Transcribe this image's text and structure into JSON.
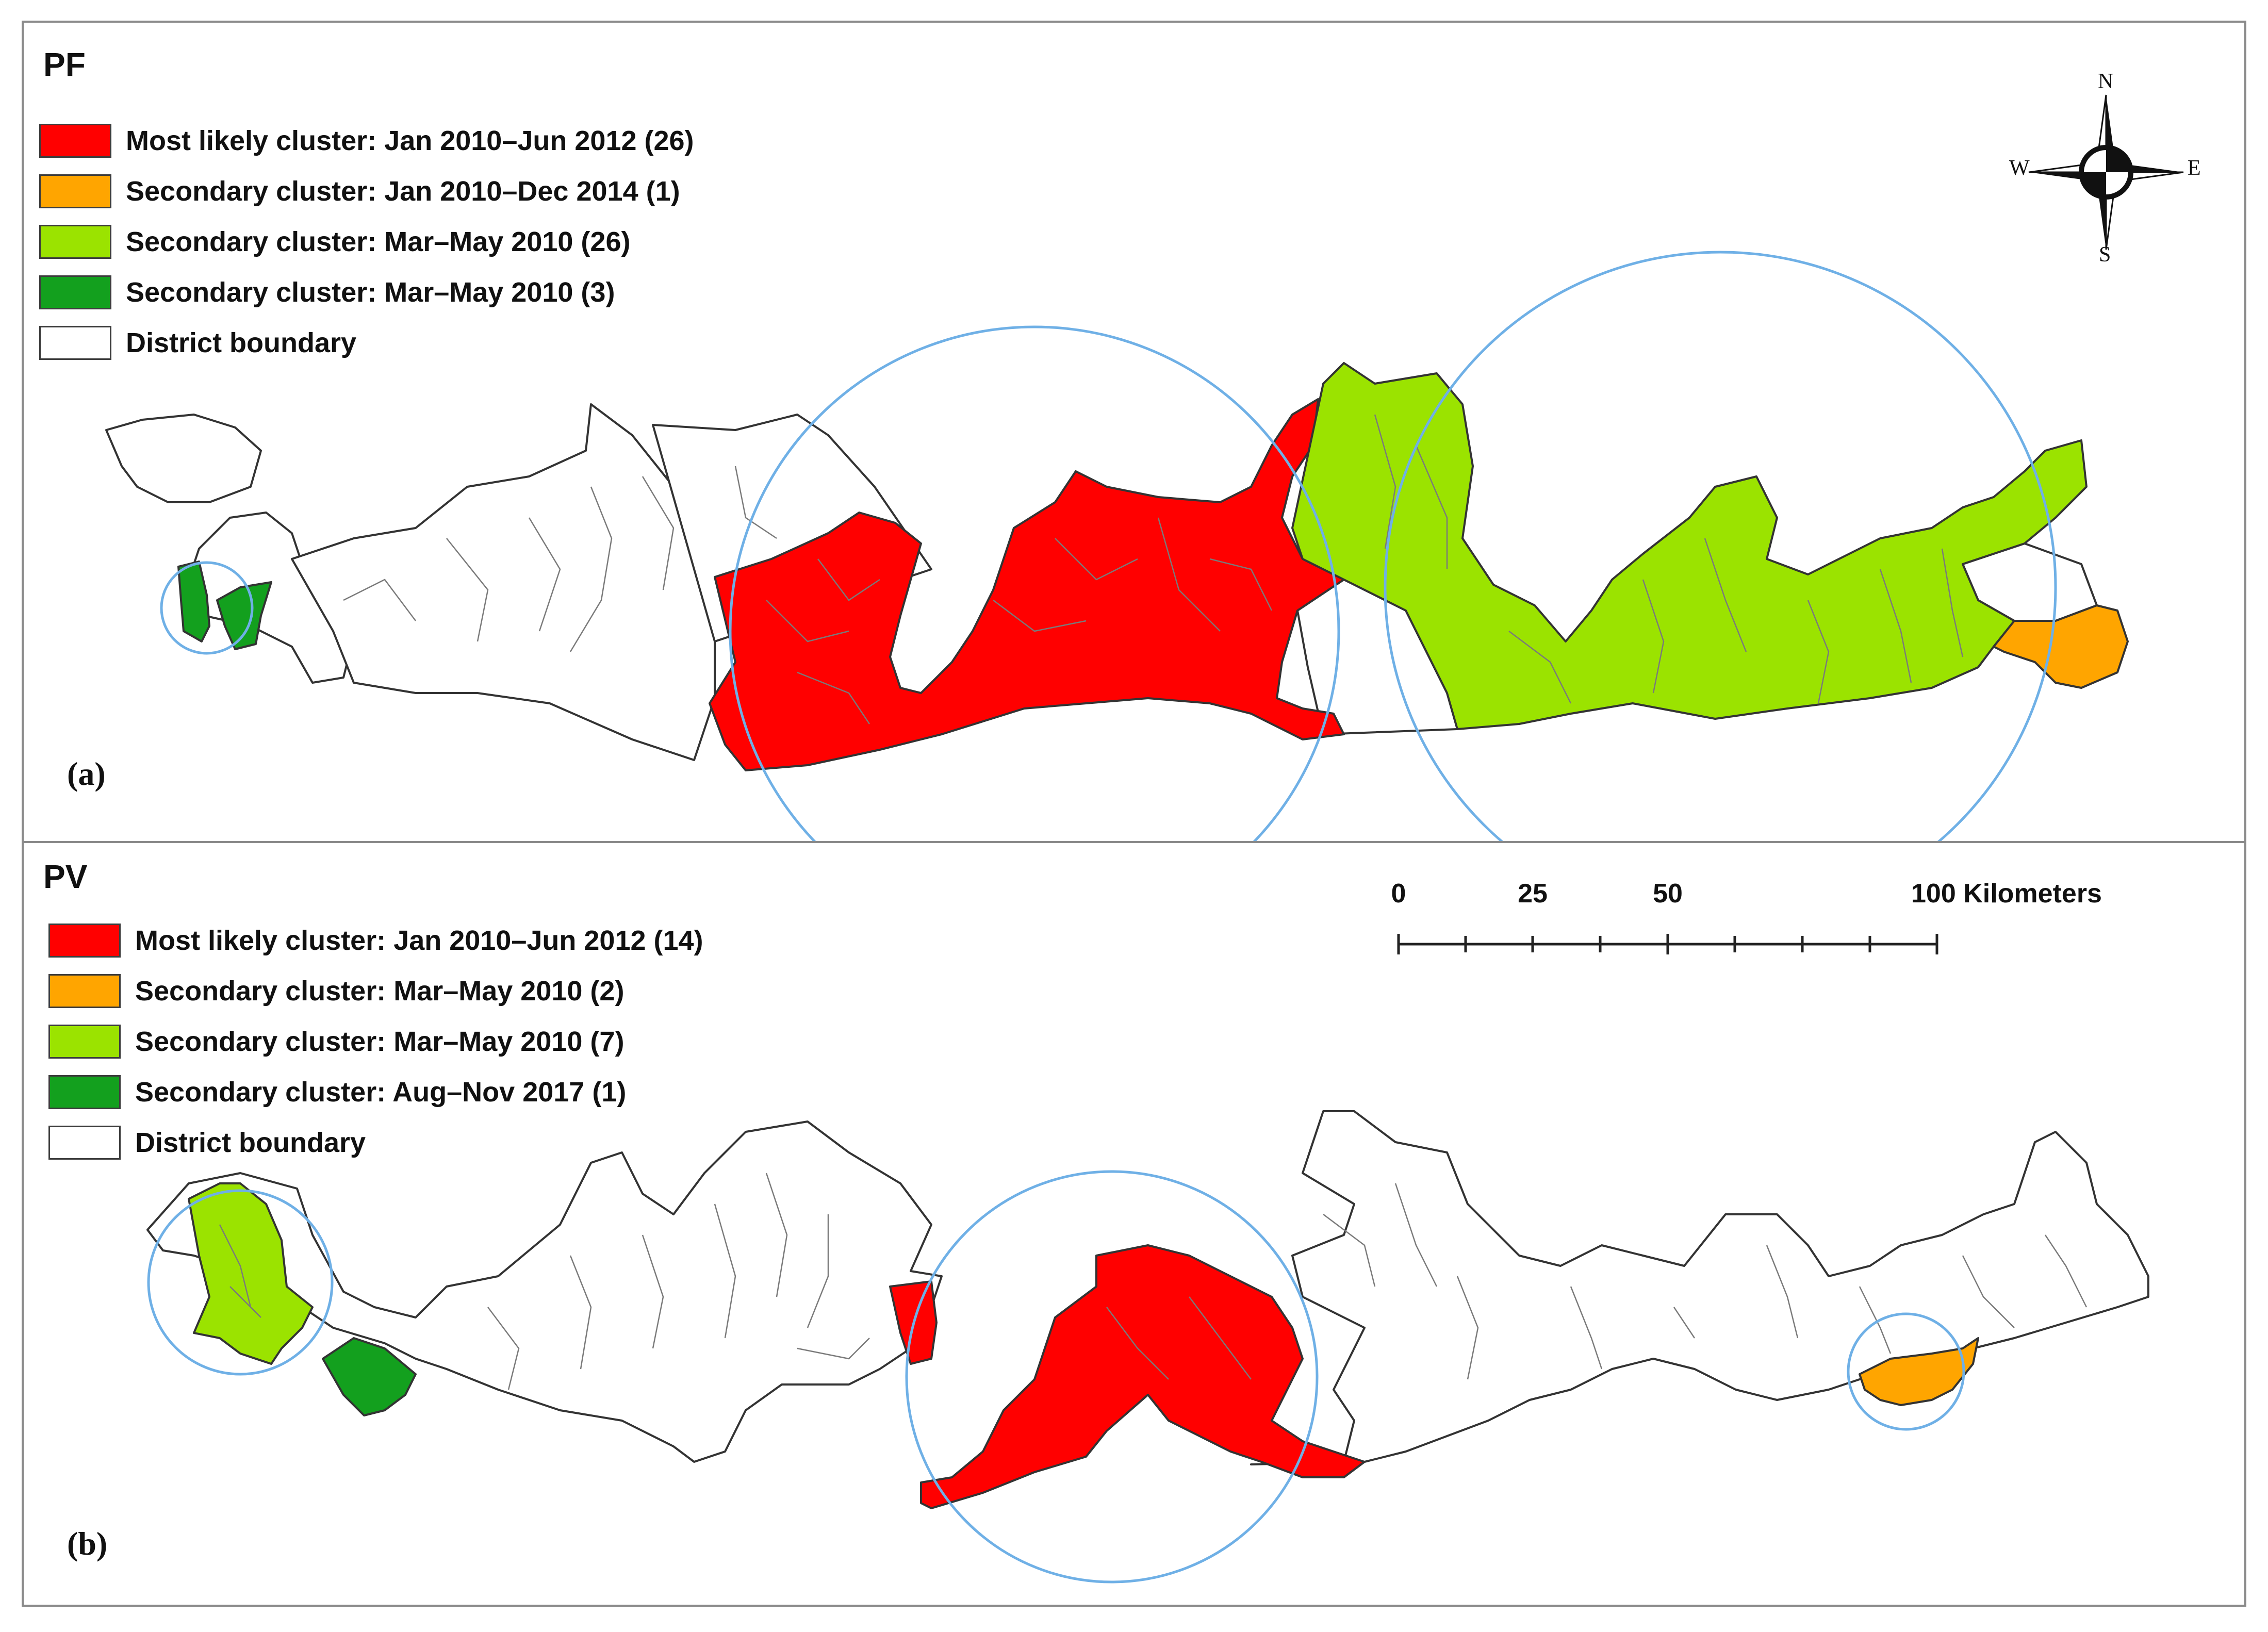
{
  "panels": [
    {
      "id": "PF",
      "label": "(a)",
      "legend": [
        {
          "label": "Most likely cluster: Jan 2010–Jun 2012 (26)",
          "color": "#ff0000"
        },
        {
          "label": "Secondary cluster: Jan 2010–Dec 2014 (1)",
          "color": "#ffa500"
        },
        {
          "label": "Secondary cluster: Mar–May 2010 (26)",
          "color": "#9be300"
        },
        {
          "label": "Secondary cluster: Mar–May 2010 (3)",
          "color": "#13a01e"
        },
        {
          "label": "District boundary",
          "color": "#ffffff"
        }
      ]
    },
    {
      "id": "PV",
      "label": "(b)",
      "legend": [
        {
          "label": "Most likely cluster: Jan 2010–Jun 2012 (14)",
          "color": "#ff0000"
        },
        {
          "label": "Secondary cluster: Mar–May 2010 (2)",
          "color": "#ffa500"
        },
        {
          "label": "Secondary cluster: Mar–May 2010 (7)",
          "color": "#9be300"
        },
        {
          "label": "Secondary cluster: Aug–Nov 2017 (1)",
          "color": "#13a01e"
        },
        {
          "label": "District boundary",
          "color": "#ffffff"
        }
      ]
    }
  ],
  "compass": {
    "n": "N",
    "s": "S",
    "e": "E",
    "w": "W"
  },
  "scale": {
    "labels": [
      "0",
      "25",
      "50",
      "100"
    ],
    "unit": "Kilometers"
  },
  "boundary_color": "#333333",
  "circle_color": "#6fb0e6"
}
